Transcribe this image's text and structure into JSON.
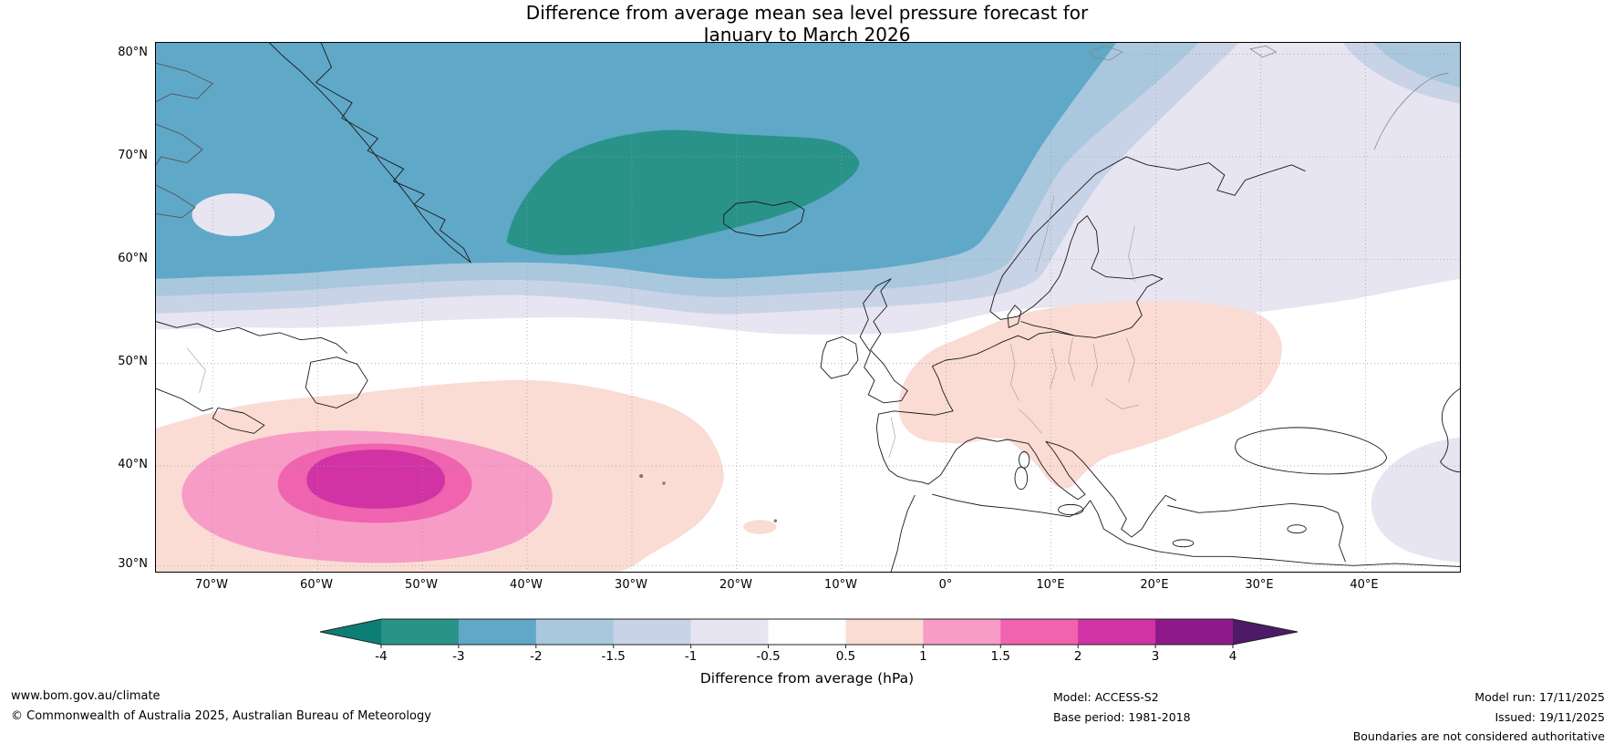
{
  "title": {
    "line1": "Difference from average mean sea level pressure forecast for",
    "line2": "January to March 2026"
  },
  "map": {
    "lat_labels": [
      "80°N",
      "70°N",
      "60°N",
      "50°N",
      "40°N",
      "30°N"
    ],
    "lon_labels": [
      "70°W",
      "60°W",
      "50°W",
      "40°W",
      "30°W",
      "20°W",
      "10°W",
      "0°",
      "10°E",
      "20°E",
      "30°E",
      "40°E"
    ]
  },
  "chart_data": {
    "type": "heatmap",
    "subtype": "filled-contour-anomaly-map",
    "title": "Difference from average mean sea level pressure forecast for January to March 2026",
    "variable": "mean sea level pressure difference from average",
    "units": "hPa",
    "region": {
      "lon_range": [
        "75°W",
        "49°E"
      ],
      "lat_range": [
        "30°N",
        "81°N"
      ]
    },
    "grid": {
      "style": "dotted",
      "lat_ticks": [
        "80°N",
        "70°N",
        "60°N",
        "50°N",
        "40°N",
        "30°N"
      ],
      "lon_ticks": [
        "70°W",
        "60°W",
        "50°W",
        "40°W",
        "30°W",
        "20°W",
        "10°W",
        "0°",
        "10°E",
        "20°E",
        "30°E",
        "40°E"
      ]
    },
    "colorbar": {
      "label": "Difference from average (hPa)",
      "tick_labels": [
        "-4",
        "-3",
        "-2",
        "-1.5",
        "-1",
        "-0.5",
        "0.5",
        "1",
        "1.5",
        "2",
        "3",
        "4"
      ],
      "segment_colors": [
        "#0c7e76",
        "#2a9389",
        "#5fa8c8",
        "#a9c8de",
        "#c9d3e7",
        "#e7e5f1",
        "#ffffff",
        "#fadcd4",
        "#f79cc6",
        "#ef63af",
        "#d233a4",
        "#8e1a8a",
        "#4d1a68"
      ],
      "orientation": "horizontal",
      "extend": "both"
    },
    "features": [
      {
        "name": "subpolar negative anomaly",
        "description": "Lower than average pressure across the high-latitude North Atlantic from the Canadian Arctic and Greenland to Scandinavia",
        "value_hPa": "-1 to -3"
      },
      {
        "name": "strongest negative centre",
        "description": "Teal core between southeast Greenland and Iceland (Denmark Strait / Iceland, ~61-73N)",
        "value_hPa": "-3 to -4"
      },
      {
        "name": "mid-Atlantic positive centre",
        "description": "High pressure anomaly centred near 38N 55W in the central North Atlantic",
        "value_hPa": "2 to 3"
      },
      {
        "name": "European positive anomaly",
        "description": "Weak positive anomaly over France, Germany, central Europe and the Baltic region",
        "value_hPa": "0.5 to 1"
      },
      {
        "name": "near-average belt",
        "description": "White band between the negative and positive regions across ~45-55N and over southern Europe / North Africa",
        "value_hPa": "-0.5 to 0.5"
      }
    ]
  },
  "footer": {
    "website": "www.bom.gov.au/climate",
    "copyright": "© Commonwealth of Australia 2025, Australian Bureau of Meteorology",
    "model": "Model: ACCESS-S2",
    "base_period": "Base period: 1981-2018",
    "model_run": "Model run: 17/11/2025",
    "issued": "Issued: 19/11/2025",
    "disclaimer": "Boundaries are not considered authoritative"
  }
}
